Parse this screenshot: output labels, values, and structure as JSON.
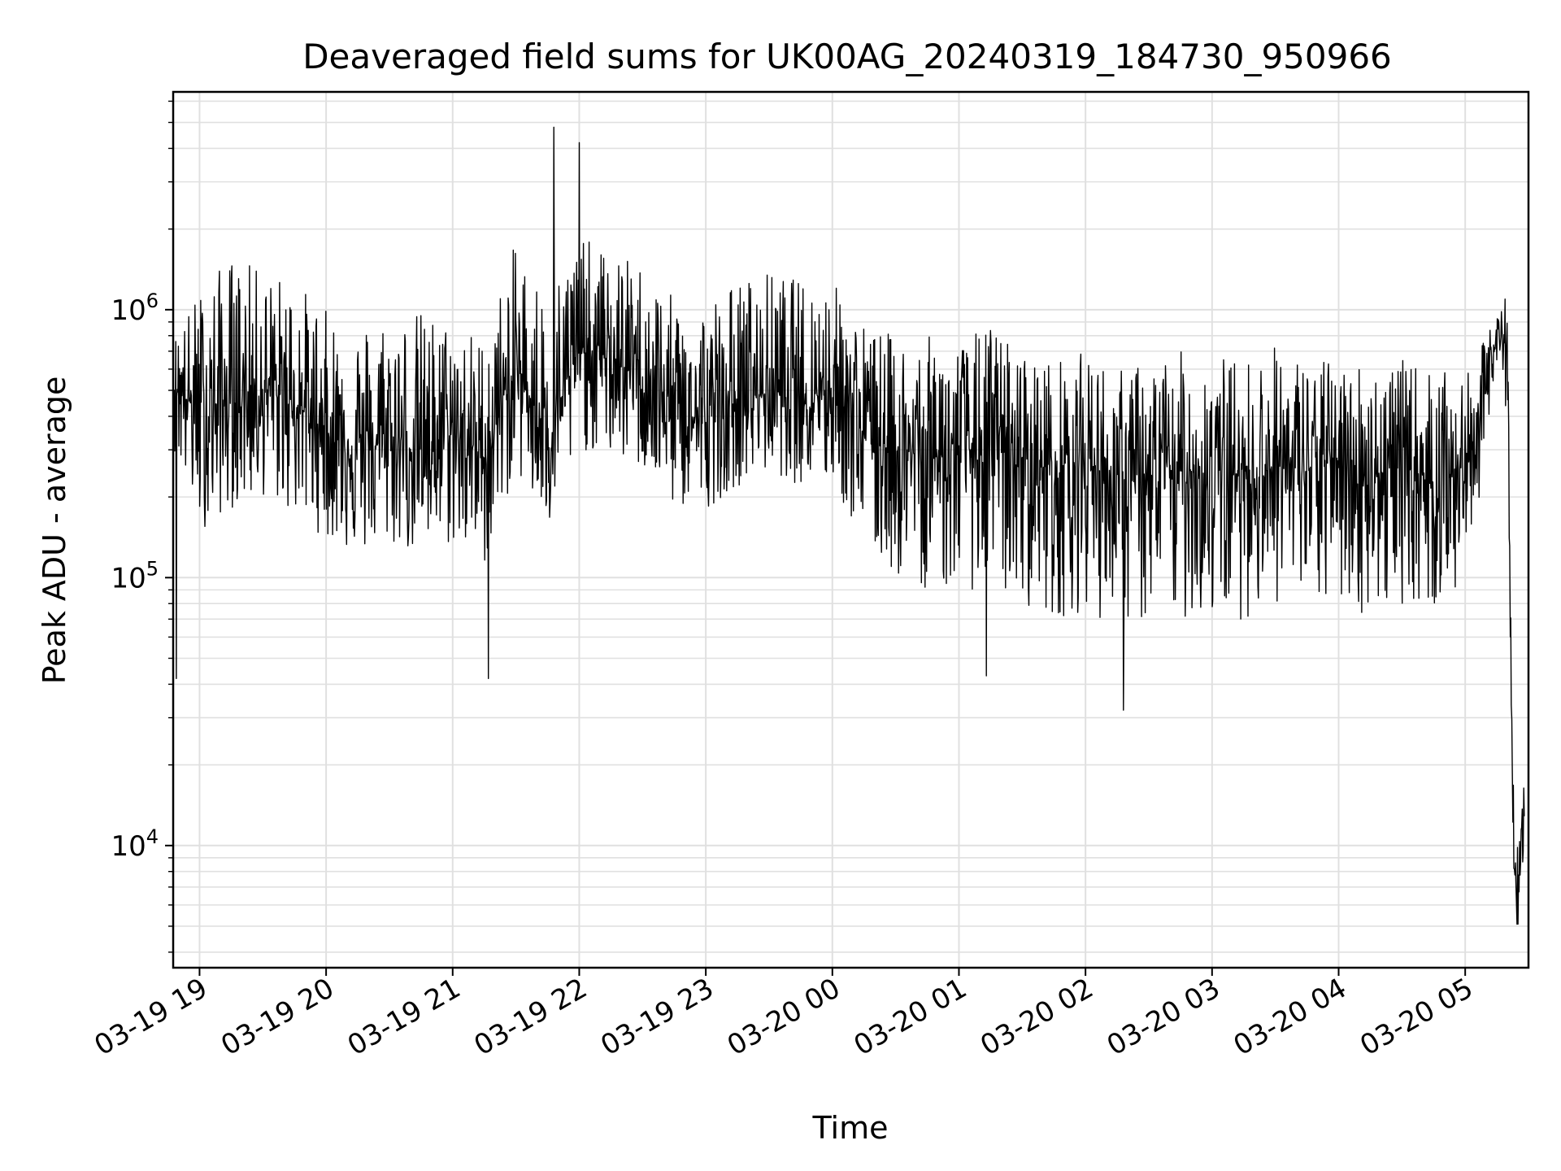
{
  "chart_data": {
    "type": "line",
    "title": "Deaveraged field sums for UK00AG_20240319_184730_950966",
    "xlabel": "Time",
    "ylabel": "Peak ADU - average",
    "yscale": "log",
    "ylim": [
      3500,
      6500000
    ],
    "xlim": [
      "2024-03-19 18:47:30",
      "2024-03-20 05:30:00"
    ],
    "grid": true,
    "line_color": "#000000",
    "grid_color": "#e0e0e0",
    "x_ticks": [
      {
        "label": "03-19 19",
        "value": "2024-03-19 19:00"
      },
      {
        "label": "03-19 20",
        "value": "2024-03-19 20:00"
      },
      {
        "label": "03-19 21",
        "value": "2024-03-19 21:00"
      },
      {
        "label": "03-19 22",
        "value": "2024-03-19 22:00"
      },
      {
        "label": "03-19 23",
        "value": "2024-03-19 23:00"
      },
      {
        "label": "03-20 00",
        "value": "2024-03-20 00:00"
      },
      {
        "label": "03-20 01",
        "value": "2024-03-20 01:00"
      },
      {
        "label": "03-20 02",
        "value": "2024-03-20 02:00"
      },
      {
        "label": "03-20 03",
        "value": "2024-03-20 03:00"
      },
      {
        "label": "03-20 04",
        "value": "2024-03-20 04:00"
      },
      {
        "label": "03-20 05",
        "value": "2024-03-20 05:00"
      }
    ],
    "y_ticks": [
      {
        "base": "10",
        "exp": "4",
        "value": 10000
      },
      {
        "base": "10",
        "exp": "5",
        "value": 100000
      },
      {
        "base": "10",
        "exp": "6",
        "value": 1000000
      }
    ],
    "series": [
      {
        "x": [
          "2024-03-19 18:48",
          "2024-03-19 19:00",
          "2024-03-19 19:15",
          "2024-03-19 19:30",
          "2024-03-19 19:45",
          "2024-03-19 20:00",
          "2024-03-19 20:15",
          "2024-03-19 20:30",
          "2024-03-19 20:45",
          "2024-03-19 21:00",
          "2024-03-19 21:15",
          "2024-03-19 21:30",
          "2024-03-19 21:45",
          "2024-03-19 22:00",
          "2024-03-19 22:15",
          "2024-03-19 22:30",
          "2024-03-19 22:45",
          "2024-03-19 23:00",
          "2024-03-19 23:15",
          "2024-03-19 23:30",
          "2024-03-19 23:45",
          "2024-03-20 00:00",
          "2024-03-20 00:15",
          "2024-03-20 00:30",
          "2024-03-20 00:45",
          "2024-03-20 01:00",
          "2024-03-20 01:15",
          "2024-03-20 01:30",
          "2024-03-20 01:45",
          "2024-03-20 02:00",
          "2024-03-20 02:15",
          "2024-03-20 02:30",
          "2024-03-20 02:45",
          "2024-03-20 03:00",
          "2024-03-20 03:15",
          "2024-03-20 03:30",
          "2024-03-20 03:45",
          "2024-03-20 04:00",
          "2024-03-20 04:15",
          "2024-03-20 04:30",
          "2024-03-20 04:45",
          "2024-03-20 05:00",
          "2024-03-20 05:10",
          "2024-03-20 05:17",
          "2024-03-20 05:20",
          "2024-03-20 05:23",
          "2024-03-20 05:25",
          "2024-03-20 05:28"
        ],
        "y": [
          550000,
          400000,
          450000,
          500000,
          450000,
          350000,
          300000,
          320000,
          300000,
          350000,
          280000,
          600000,
          350000,
          700000,
          650000,
          550000,
          400000,
          380000,
          450000,
          500000,
          480000,
          520000,
          350000,
          300000,
          280000,
          300000,
          300000,
          280000,
          250000,
          280000,
          220000,
          230000,
          250000,
          250000,
          240000,
          260000,
          250000,
          280000,
          240000,
          260000,
          230000,
          260000,
          500000,
          950000,
          600000,
          9000,
          5000,
          18000
        ],
        "envelope_high": [
          800000,
          1200000,
          1600000,
          1400000,
          1300000,
          1000000,
          900000,
          1000000,
          1000000,
          900000,
          800000,
          1800000,
          1200000,
          1900000,
          1600000,
          1500000,
          1100000,
          1100000,
          1300000,
          1400000,
          1300000,
          1300000,
          900000,
          800000,
          800000,
          750000,
          900000,
          700000,
          650000,
          700000,
          600000,
          650000,
          700000,
          700000,
          650000,
          750000,
          650000,
          650000,
          650000,
          650000,
          600000,
          550000,
          800000,
          1150000,
          1100000,
          15000,
          10000,
          19000
        ],
        "envelope_low": [
          300000,
          150000,
          180000,
          200000,
          170000,
          140000,
          120000,
          130000,
          120000,
          130000,
          110000,
          250000,
          140000,
          300000,
          280000,
          250000,
          180000,
          180000,
          220000,
          250000,
          220000,
          220000,
          130000,
          100000,
          90000,
          90000,
          90000,
          80000,
          70000,
          75000,
          65000,
          65000,
          70000,
          70000,
          70000,
          80000,
          75000,
          80000,
          70000,
          80000,
          75000,
          90000,
          300000,
          700000,
          350000,
          7000,
          4500,
          10000
        ]
      }
    ],
    "annotations": {
      "notable_spikes": [
        {
          "x": "2024-03-19 21:48",
          "y": 4800000
        },
        {
          "x": "2024-03-19 22:00",
          "y": 4200000
        }
      ],
      "notable_dips": [
        {
          "x": "2024-03-19 18:49",
          "y": 42000
        },
        {
          "x": "2024-03-19 21:17",
          "y": 42000
        },
        {
          "x": "2024-03-20 01:13",
          "y": 43000
        },
        {
          "x": "2024-03-20 02:18",
          "y": 32000
        }
      ]
    }
  }
}
